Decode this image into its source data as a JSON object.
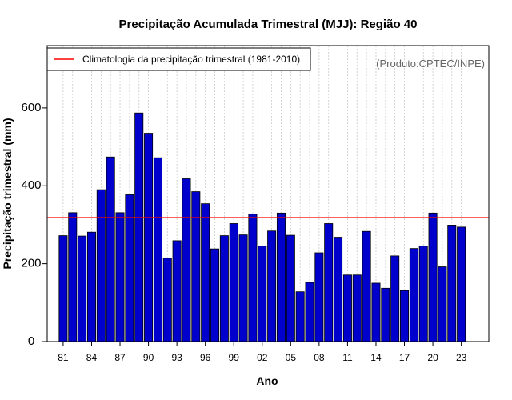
{
  "chart_data": {
    "type": "bar",
    "title": "Precipitação Acumulada Trimestral (MJJ): Região 40",
    "xlabel": "Ano",
    "ylabel": "Precipitação trimestral (mm)",
    "credit": "(Produto:CPTEC/INPE)",
    "ylim": [
      0,
      760
    ],
    "yticks": [
      0,
      200,
      400,
      600
    ],
    "years": [
      1981,
      1982,
      1983,
      1984,
      1985,
      1986,
      1987,
      1988,
      1989,
      1990,
      1991,
      1992,
      1993,
      1994,
      1995,
      1996,
      1997,
      1998,
      1999,
      2000,
      2001,
      2002,
      2003,
      2004,
      2005,
      2006,
      2007,
      2008,
      2009,
      2010,
      2011,
      2012,
      2013,
      2014,
      2015,
      2016,
      2017,
      2018,
      2019,
      2020,
      2021,
      2022,
      2023
    ],
    "categories": [
      "81",
      "82",
      "83",
      "84",
      "85",
      "86",
      "87",
      "88",
      "89",
      "90",
      "91",
      "92",
      "93",
      "94",
      "95",
      "96",
      "97",
      "98",
      "99",
      "00",
      "01",
      "02",
      "03",
      "04",
      "05",
      "06",
      "07",
      "08",
      "09",
      "10",
      "11",
      "12",
      "13",
      "14",
      "15",
      "16",
      "17",
      "18",
      "19",
      "20",
      "21",
      "22",
      "23"
    ],
    "x_tick_labels": [
      "81",
      "84",
      "87",
      "90",
      "93",
      "96",
      "99",
      "02",
      "05",
      "08",
      "11",
      "14",
      "17",
      "20",
      "23"
    ],
    "values": [
      272,
      331,
      271,
      281,
      390,
      474,
      331,
      377,
      587,
      535,
      472,
      214,
      259,
      418,
      385,
      354,
      238,
      272,
      303,
      274,
      327,
      245,
      284,
      330,
      273,
      128,
      152,
      228,
      303,
      268,
      171,
      171,
      283,
      150,
      137,
      220,
      131,
      239,
      245,
      330,
      192,
      299,
      294
    ],
    "climatology": 318,
    "legend": {
      "label": "Climatologia da precipitação trimestral (1981-2010)",
      "placement": "top-left"
    },
    "colors": {
      "bar": "#0000cd",
      "bar_edge": "#000000",
      "climatology": "#ff0000",
      "grid": "#c8c8c8"
    },
    "grid": true
  }
}
